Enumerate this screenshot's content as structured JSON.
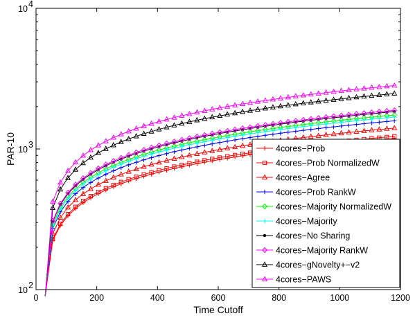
{
  "chart_data": {
    "type": "line",
    "title": "",
    "xlabel": "Time Cutoff",
    "ylabel": "PAR-10",
    "xlim": [
      0,
      1200
    ],
    "ylim": [
      100,
      10000
    ],
    "yscale": "log",
    "xticks": [
      "0",
      "200",
      "400",
      "600",
      "800",
      "1000",
      "1200"
    ],
    "yticks": [
      {
        "base": "10",
        "exp": "2",
        "value": 100
      },
      {
        "base": "10",
        "exp": "3",
        "value": 1000
      },
      {
        "base": "10",
        "exp": "4",
        "value": 10000
      }
    ],
    "x_start": 30,
    "x_step": 25,
    "legend_position": "bottom-right",
    "series": [
      {
        "name": "4cores−Prob",
        "color": "#ff0000",
        "marker": "plus",
        "value_at_1200": 1200
      },
      {
        "name": "4cores−Prob NormalizedW",
        "color": "#ff0000",
        "marker": "square",
        "value_at_1200": 1240
      },
      {
        "name": "4cores−Agree",
        "color": "#ff0000",
        "marker": "triangle",
        "value_at_1200": 1420
      },
      {
        "name": "4cores−Prob RankW",
        "color": "#0000ff",
        "marker": "plus",
        "value_at_1200": 1600
      },
      {
        "name": "4cores−Majority NormalizedW",
        "color": "#00ff00",
        "marker": "diamond",
        "value_at_1200": 1760
      },
      {
        "name": "4cores−Majority",
        "color": "#00ffff",
        "marker": "plus",
        "value_at_1200": 1700
      },
      {
        "name": "4cores−No Sharing",
        "color": "#000000",
        "marker": "dot",
        "value_at_1200": 1860
      },
      {
        "name": "4cores−Majority RankW",
        "color": "#ff00ff",
        "marker": "diamond",
        "value_at_1200": 1900
      },
      {
        "name": "4cores−gNovelty+−v2",
        "color": "#000000",
        "marker": "triangle",
        "value_at_1200": 2500
      },
      {
        "name": "4cores−PAWS",
        "color": "#ff00ff",
        "marker": "triangle",
        "value_at_1200": 2850
      }
    ]
  }
}
